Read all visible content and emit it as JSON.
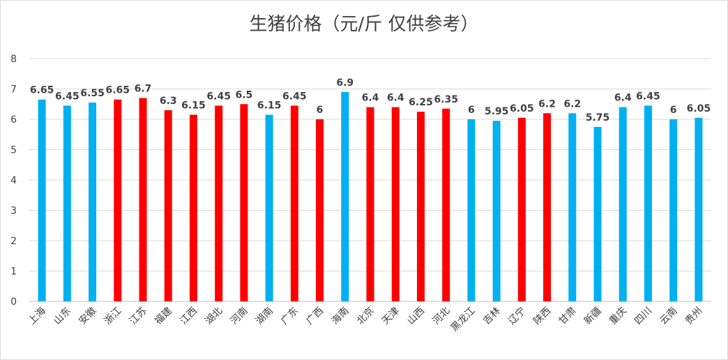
{
  "chart_data": {
    "type": "bar",
    "title": "生猪价格（元/斤 仅供参考）",
    "xlabel": "",
    "ylabel": "",
    "ylim": [
      0,
      8
    ],
    "yticks": [
      "0",
      "1",
      "2",
      "3",
      "4",
      "5",
      "6",
      "7",
      "8"
    ],
    "grid": true,
    "categories": [
      "上海",
      "山东",
      "安徽",
      "浙江",
      "江苏",
      "福建",
      "江西",
      "湖北",
      "河南",
      "湖南",
      "广东",
      "广西",
      "海南",
      "北京",
      "天津",
      "山西",
      "河北",
      "黑龙江",
      "吉林",
      "辽宁",
      "陕西",
      "甘肃",
      "新疆",
      "重庆",
      "四川",
      "云南",
      "贵州"
    ],
    "values": [
      6.65,
      6.45,
      6.55,
      6.65,
      6.7,
      6.3,
      6.15,
      6.45,
      6.5,
      6.15,
      6.45,
      6,
      6.9,
      6.4,
      6.4,
      6.25,
      6.35,
      6,
      5.95,
      6.05,
      6.2,
      6.2,
      5.75,
      6.4,
      6.45,
      6,
      6.05
    ],
    "value_labels": [
      "6.65",
      "6.45",
      "6.55",
      "6.65",
      "6.7",
      "6.3",
      "6.15",
      "6.45",
      "6.5",
      "6.15",
      "6.45",
      "6",
      "6.9",
      "6.4",
      "6.4",
      "6.25",
      "6.35",
      "6",
      "5.95",
      "6.05",
      "6.2",
      "6.2",
      "5.75",
      "6.4",
      "6.45",
      "6",
      "6.05"
    ],
    "bar_colors": [
      "blue",
      "blue",
      "blue",
      "red",
      "red",
      "red",
      "red",
      "red",
      "red",
      "blue",
      "red",
      "red",
      "blue",
      "red",
      "red",
      "red",
      "red",
      "blue",
      "blue",
      "red",
      "red",
      "blue",
      "blue",
      "blue",
      "blue",
      "blue",
      "blue"
    ],
    "colors": {
      "blue": "#00b0f0",
      "red": "#ff0000",
      "grid": "#d9d9d9",
      "axis": "#bfbfbf"
    }
  }
}
